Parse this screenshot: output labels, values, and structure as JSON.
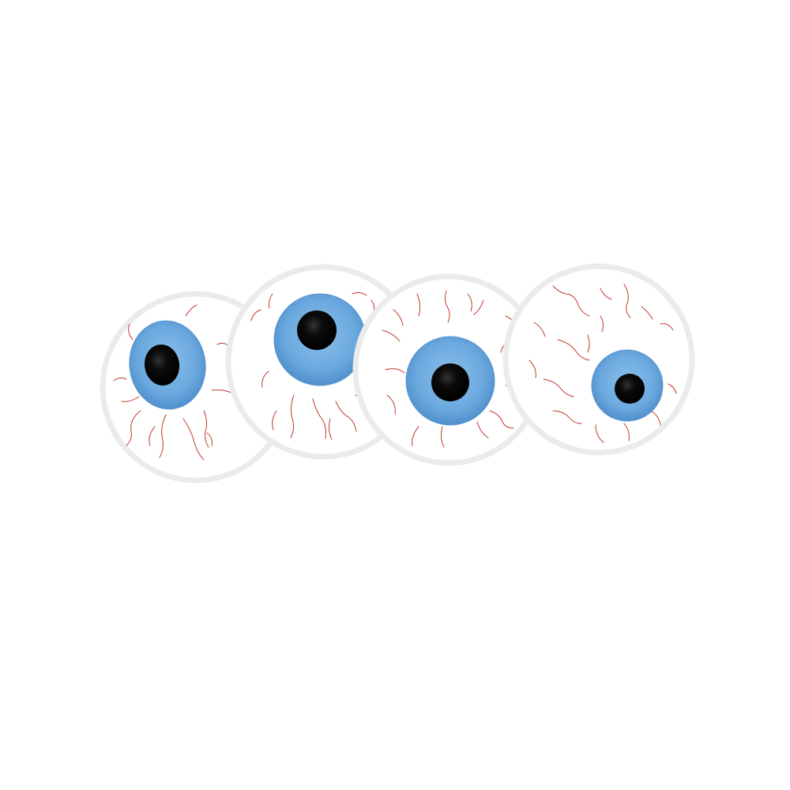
{
  "colors": {
    "background": "#ffffff",
    "sclera": "#ffffff",
    "sclera_rim": "#e9e9e9",
    "iris": "#6aa8de",
    "iris_dark": "#4a86c0",
    "pupil": "#050505",
    "vein": "#c0392b"
  },
  "eyeballs": [
    {
      "name": "eyeball-1",
      "gaze": "left"
    },
    {
      "name": "eyeball-2",
      "gaze": "up"
    },
    {
      "name": "eyeball-3",
      "gaze": "center"
    },
    {
      "name": "eyeball-4",
      "gaze": "right"
    }
  ]
}
